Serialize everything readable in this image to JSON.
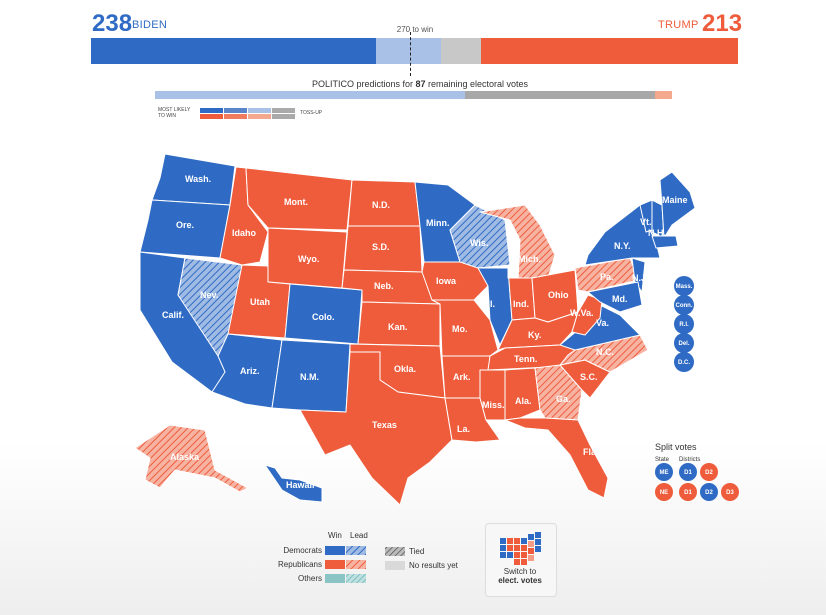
{
  "header": {
    "dem_total": "238",
    "dem_name": "BIDEN",
    "rep_name": "TRUMP",
    "rep_total": "213",
    "threshold_label": "270 to win",
    "pred_prefix": "POLITICO predictions for ",
    "pred_count": "87",
    "pred_suffix": " remaining electoral votes"
  },
  "colors": {
    "dem": "#2f6bc4",
    "rep": "#ee5c3c",
    "light_dem": "#a9c1e6",
    "gray": "#c8c8c8",
    "hatch_dem": "#8fb0e0",
    "hatch_rep": "#f49c86",
    "other": "#8ac4c4"
  },
  "legend_tiny": {
    "most_likely": "MOST LIKELY",
    "to_win": "TO WIN",
    "toss_up": "TOSS-UP"
  },
  "states": {
    "wash": "Wash.",
    "ore": "Ore.",
    "calif": "Calif.",
    "nev": "Nev.",
    "idaho": "Idaho",
    "mont": "Mont.",
    "wyo": "Wyo.",
    "utah": "Utah",
    "colo": "Colo.",
    "ariz": "Ariz.",
    "nm": "N.M.",
    "nd": "N.D.",
    "sd": "S.D.",
    "neb": "Neb.",
    "kan": "Kan.",
    "okla": "Okla.",
    "texas": "Texas",
    "minn": "Minn.",
    "iowa": "Iowa",
    "mo": "Mo.",
    "ark": "Ark.",
    "la": "La.",
    "wis": "Wis.",
    "ill": "Ill.",
    "mich": "Mich.",
    "ind": "Ind.",
    "ohio": "Ohio",
    "ky": "Ky.",
    "tenn": "Tenn.",
    "miss": "Miss.",
    "ala": "Ala.",
    "ga": "Ga.",
    "fla": "Fla.",
    "sc": "S.C.",
    "nc": "N.C.",
    "va": "Va.",
    "wva": "W.Va.",
    "pa": "Pa.",
    "ny": "N.Y.",
    "md": "Md.",
    "nj": "N.J.",
    "vt": "Vt.",
    "nh": "N.H.",
    "maine": "Maine",
    "alaska": "Alaska",
    "hawaii": "Hawaii"
  },
  "small_states": [
    "Mass.",
    "Conn.",
    "R.I.",
    "Del.",
    "D.C."
  ],
  "split_votes": {
    "title": "Split votes",
    "state_label": "State",
    "districts_label": "Districts",
    "rows": [
      {
        "state": "ME",
        "districts": [
          "D1",
          "D2"
        ]
      },
      {
        "state": "NE",
        "districts": [
          "D1",
          "D2",
          "D3"
        ]
      }
    ]
  },
  "legend": {
    "win": "Win",
    "lead": "Lead",
    "democrats": "Democrats",
    "republicans": "Republicans",
    "others": "Others",
    "tied": "Tied",
    "no_results": "No results yet"
  },
  "switch": {
    "line1": "Switch to",
    "line2": "elect. votes"
  }
}
